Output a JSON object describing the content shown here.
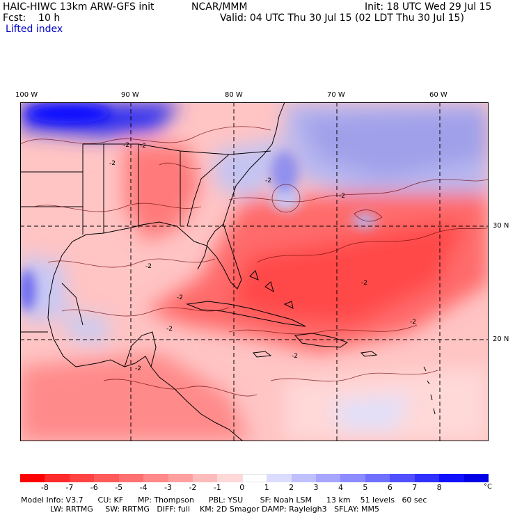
{
  "header": {
    "title": "HAIC-HIWC 13km ARW-GFS init",
    "org": "NCAR/MMM",
    "init": "Init: 18 UTC Wed 29 Jul 15",
    "fcst": "Fcst:    10 h",
    "valid": "Valid: 04 UTC Thu 30 Jul 15 (02 LDT Thu 30 Jul 15)",
    "field": "Lifted index"
  },
  "map": {
    "lon_labels": [
      "100 W",
      "90 W",
      "80 W",
      "70 W",
      "60 W"
    ],
    "lat_labels": [
      "30 N",
      "20 N"
    ],
    "contour_labels": [
      "-2",
      "-2",
      "-2",
      "-2",
      "-2",
      "-2",
      "-2",
      "-2",
      "-2",
      "-2",
      "-2",
      "-2"
    ]
  },
  "colorbar": {
    "labels": [
      "-8",
      "-7",
      "-6",
      "-5",
      "-4",
      "-3",
      "-2",
      "-1",
      "0",
      "1",
      "2",
      "3",
      "4",
      "5",
      "6",
      "7",
      "8"
    ],
    "unit": "°C",
    "colors": [
      "#ff0000",
      "#ff2a2a",
      "#ff4242",
      "#ff5a5a",
      "#ff7070",
      "#ff8888",
      "#ffa0a0",
      "#ffbcbc",
      "#ffd8d8",
      "#ffffff",
      "#dcdcff",
      "#c0c0ff",
      "#a6a6ff",
      "#8c8cff",
      "#7070ff",
      "#5050ff",
      "#3030ff",
      "#1010ff",
      "#0000e6"
    ]
  },
  "footer": {
    "line1": "Model Info: V3.7      CU: KF      MP: Thompson      PBL: YSU       SF: Noah LSM      13 km    51 levels   60 sec",
    "line2": "            LW: RRTMG     SW: RRTMG   DIFF: full    KM: 2D Smagor DAMP: Rayleigh3   SFLAY: MM5"
  }
}
